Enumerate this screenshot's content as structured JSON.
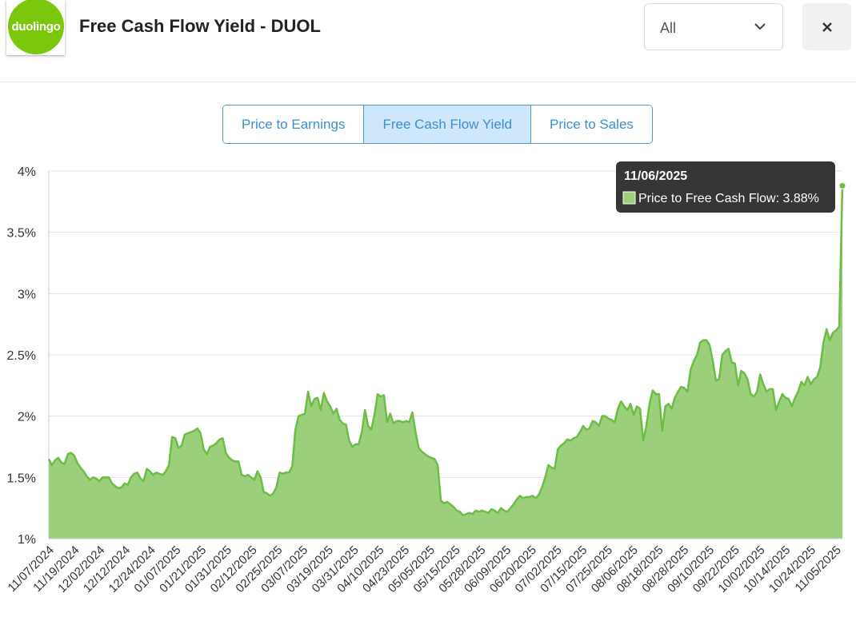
{
  "header": {
    "logo_text": "duolingo",
    "title": "Free Cash Flow Yield - DUOL",
    "range_select": {
      "value": "All"
    }
  },
  "tabs": [
    {
      "label": "Price to Earnings",
      "active": false
    },
    {
      "label": "Free Cash Flow Yield",
      "active": true
    },
    {
      "label": "Price to Sales",
      "active": false
    }
  ],
  "icons": {
    "close": "close-icon",
    "dropdown": "chevron-down-icon"
  },
  "colors": {
    "series_line": "#6cbd45",
    "series_fill": "#9ccf7c",
    "tab_accent": "#3a8fd6",
    "logo": "#7ac70c"
  },
  "tooltip": {
    "date": "11/06/2025",
    "label": "Price to Free Cash Flow: 3.88%"
  },
  "chart_data": {
    "type": "area",
    "title": "",
    "xlabel": "",
    "ylabel": "",
    "ylim": [
      1,
      4
    ],
    "y_ticks": [
      1,
      1.5,
      2,
      2.5,
      3,
      3.5,
      4
    ],
    "y_tick_labels": [
      "1%",
      "1.5%",
      "2%",
      "2.5%",
      "3%",
      "3.5%",
      "4%"
    ],
    "grid": true,
    "x_tick_labels": [
      "11/07/2024",
      "11/19/2024",
      "12/02/2024",
      "12/12/2024",
      "12/24/2024",
      "01/07/2025",
      "01/21/2025",
      "01/31/2025",
      "02/12/2025",
      "02/25/2025",
      "03/07/2025",
      "03/19/2025",
      "03/31/2025",
      "04/10/2025",
      "04/23/2025",
      "05/05/2025",
      "05/15/2025",
      "05/28/2025",
      "06/09/2025",
      "06/20/2025",
      "07/02/2025",
      "07/15/2025",
      "07/25/2025",
      "08/06/2025",
      "08/18/2025",
      "08/28/2025",
      "09/10/2025",
      "09/22/2025",
      "10/02/2025",
      "10/14/2025",
      "10/24/2025",
      "11/05/2025"
    ],
    "series": [
      {
        "name": "Price to Free Cash Flow",
        "values": [
          1.65,
          1.6,
          1.64,
          1.66,
          1.62,
          1.61,
          1.69,
          1.7,
          1.68,
          1.62,
          1.58,
          1.55,
          1.51,
          1.48,
          1.5,
          1.49,
          1.47,
          1.5,
          1.5,
          1.5,
          1.45,
          1.43,
          1.41,
          1.42,
          1.45,
          1.44,
          1.5,
          1.53,
          1.54,
          1.49,
          1.47,
          1.57,
          1.55,
          1.52,
          1.54,
          1.53,
          1.52,
          1.55,
          1.6,
          1.83,
          1.82,
          1.74,
          1.76,
          1.85,
          1.86,
          1.87,
          1.88,
          1.9,
          1.86,
          1.73,
          1.69,
          1.75,
          1.76,
          1.78,
          1.81,
          1.82,
          1.7,
          1.66,
          1.64,
          1.63,
          1.63,
          1.52,
          1.51,
          1.52,
          1.5,
          1.48,
          1.55,
          1.5,
          1.38,
          1.37,
          1.35,
          1.37,
          1.42,
          1.54,
          1.53,
          1.54,
          1.54,
          1.59,
          1.89,
          2.0,
          2.01,
          2.02,
          2.2,
          2.08,
          2.14,
          2.15,
          2.05,
          2.19,
          2.12,
          2.08,
          2.02,
          2.06,
          1.97,
          1.94,
          1.93,
          1.8,
          1.75,
          1.77,
          1.77,
          1.87,
          2.05,
          1.92,
          1.89,
          2.01,
          2.18,
          2.16,
          2.17,
          1.95,
          2.02,
          1.94,
          1.96,
          1.96,
          1.95,
          1.96,
          1.95,
          2.03,
          1.87,
          1.74,
          1.71,
          1.69,
          1.67,
          1.66,
          1.65,
          1.6,
          1.31,
          1.29,
          1.3,
          1.28,
          1.26,
          1.23,
          1.22,
          1.19,
          1.2,
          1.21,
          1.2,
          1.23,
          1.22,
          1.23,
          1.22,
          1.21,
          1.24,
          1.23,
          1.21,
          1.25,
          1.23,
          1.22,
          1.25,
          1.28,
          1.32,
          1.35,
          1.33,
          1.34,
          1.34,
          1.35,
          1.33,
          1.36,
          1.42,
          1.5,
          1.6,
          1.58,
          1.57,
          1.73,
          1.76,
          1.78,
          1.81,
          1.8,
          1.82,
          1.83,
          1.87,
          1.92,
          1.89,
          1.9,
          1.96,
          1.95,
          1.92,
          2.0,
          2.0,
          1.98,
          1.97,
          1.95,
          2.06,
          2.12,
          2.08,
          2.05,
          2.1,
          2.01,
          2.08,
          2.06,
          1.8,
          1.92,
          2.1,
          2.21,
          2.18,
          2.18,
          1.88,
          2.08,
          2.1,
          2.06,
          2.15,
          2.2,
          2.24,
          2.23,
          2.2,
          2.38,
          2.45,
          2.5,
          2.6,
          2.62,
          2.62,
          2.58,
          2.45,
          2.29,
          2.3,
          2.5,
          2.53,
          2.55,
          2.44,
          2.43,
          2.25,
          2.37,
          2.35,
          2.3,
          2.18,
          2.16,
          2.2,
          2.34,
          2.26,
          2.2,
          2.22,
          2.22,
          2.05,
          2.12,
          2.18,
          2.15,
          2.14,
          2.08,
          2.15,
          2.2,
          2.28,
          2.25,
          2.32,
          2.26,
          2.3,
          2.32,
          2.4,
          2.6,
          2.71,
          2.62,
          2.68,
          2.7,
          2.73,
          3.88
        ]
      }
    ]
  }
}
